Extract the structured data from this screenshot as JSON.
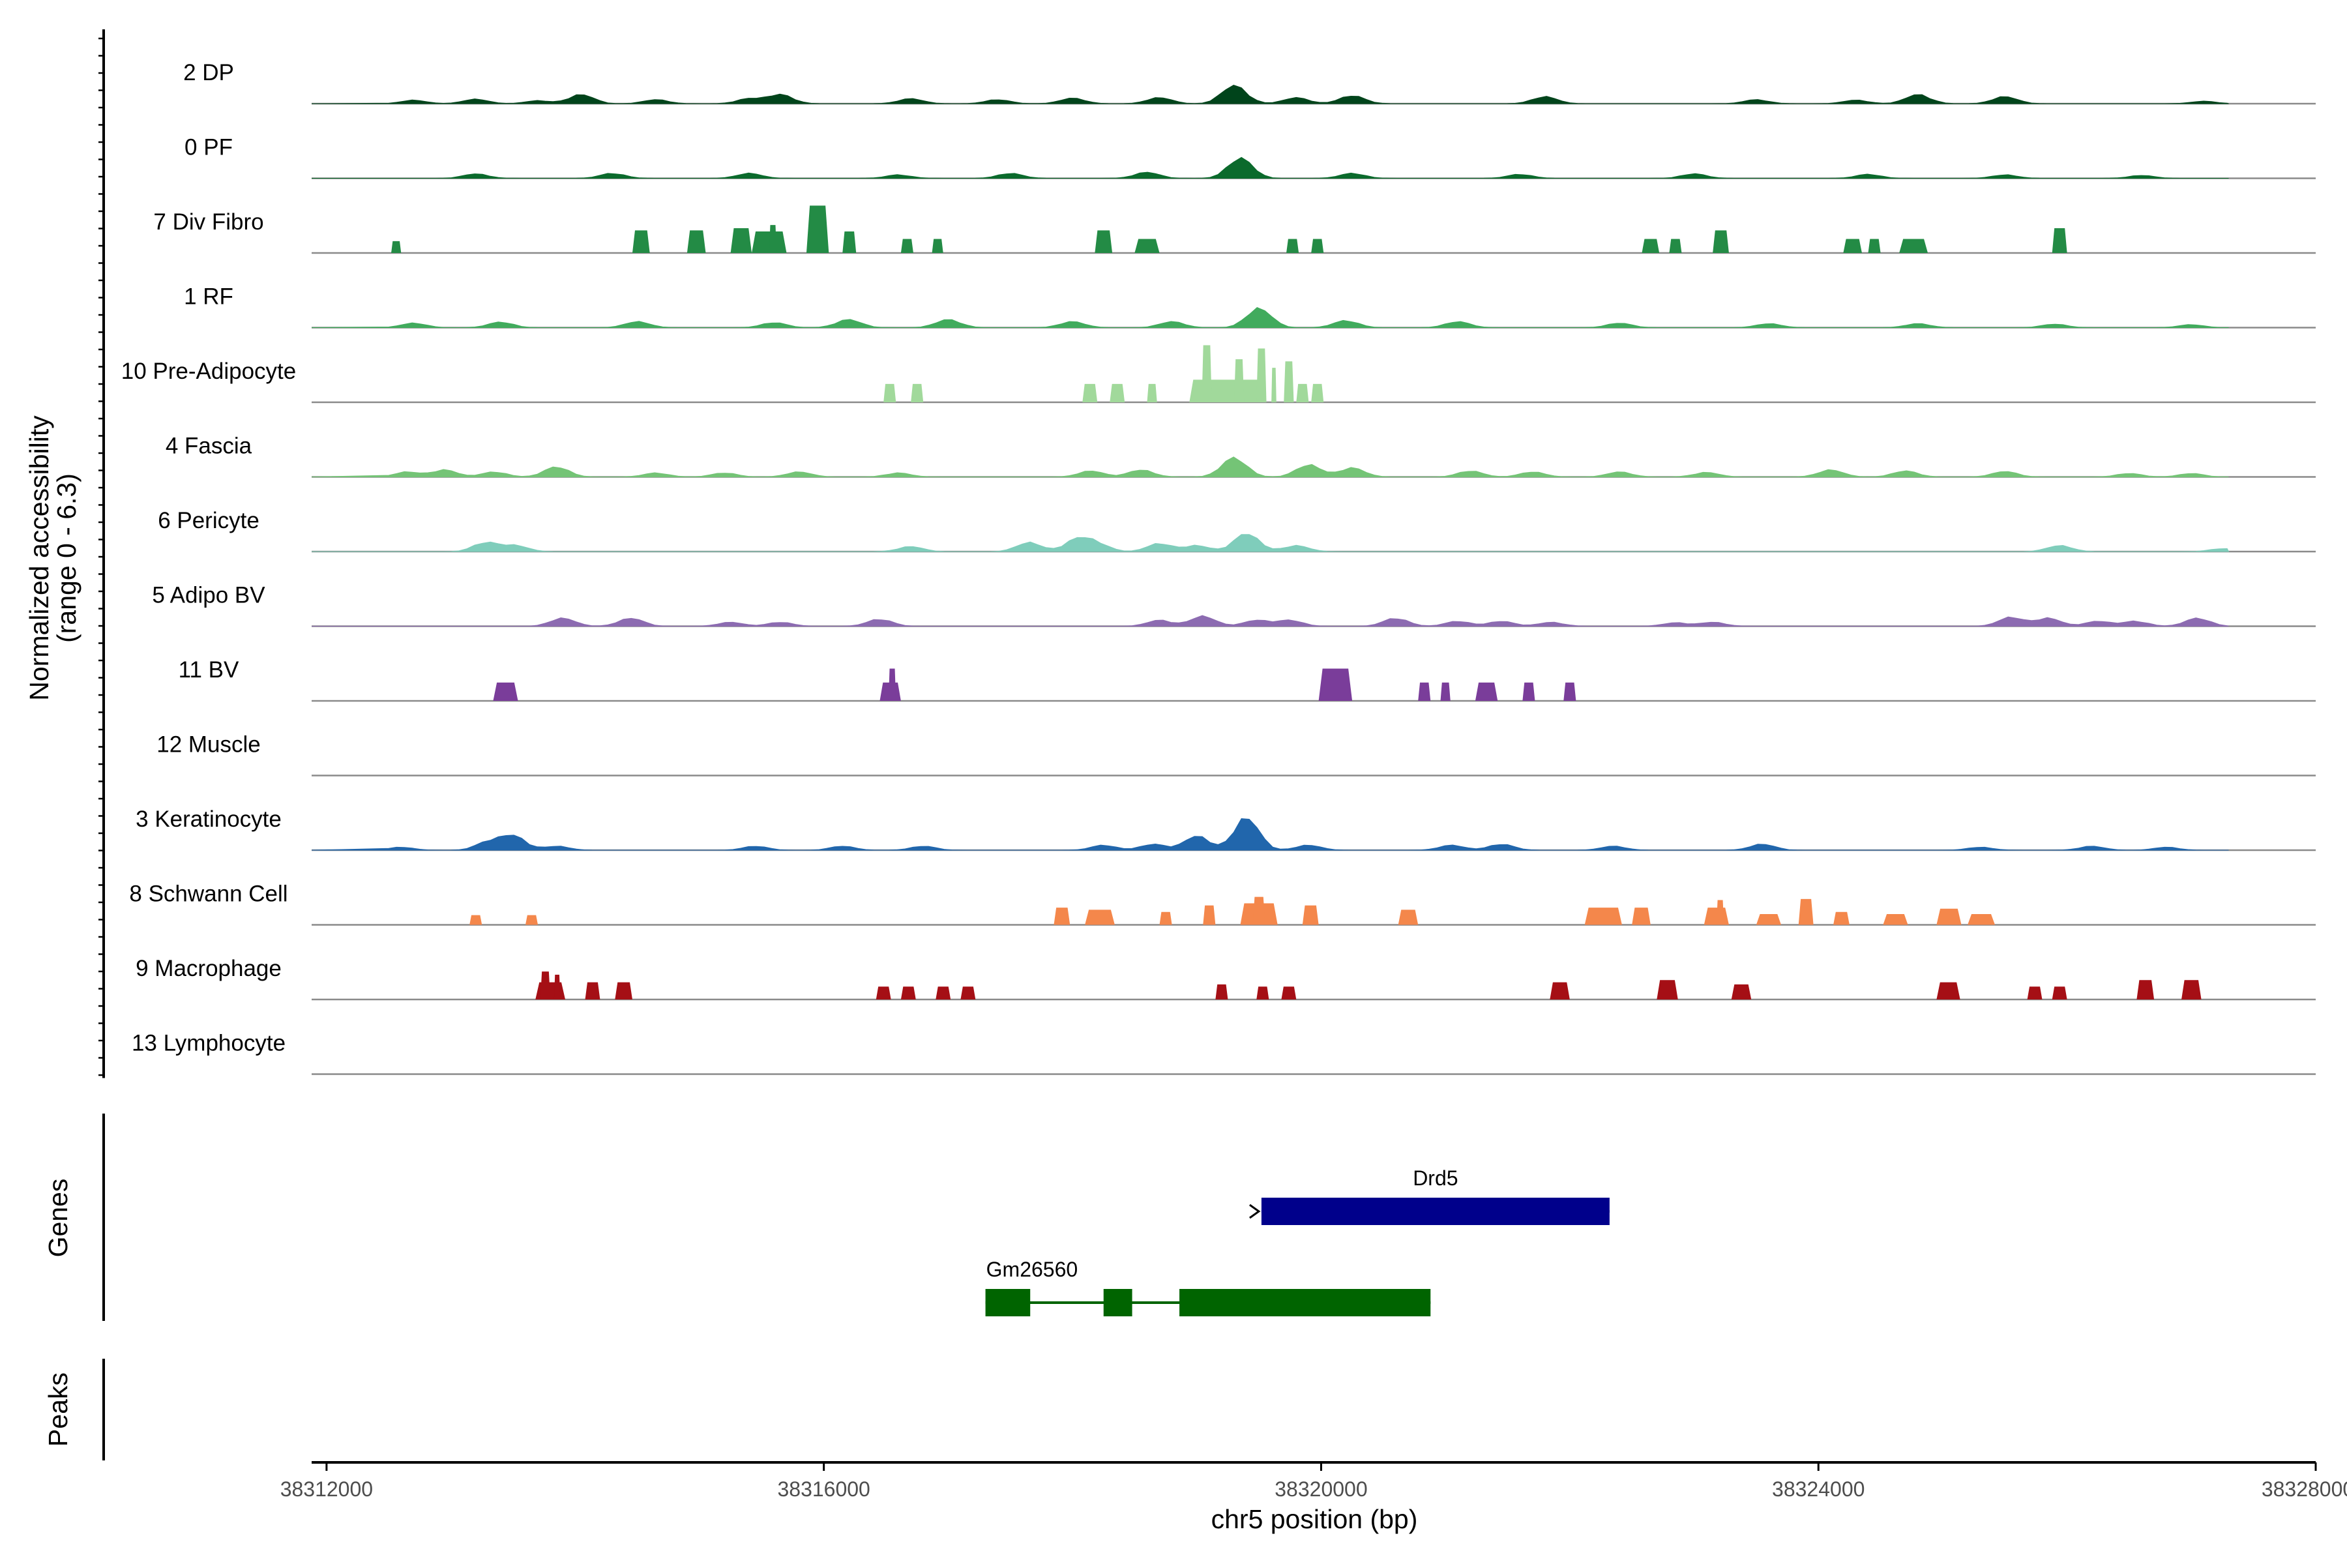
{
  "chart_data": {
    "type": "area",
    "title": "",
    "xlabel": "chr5 position (bp)",
    "ylabel": "Normalized accessibility\n(range 0 - 6.3)",
    "y_range_label": "(range 0 - 6.3)",
    "ylim": [
      0,
      6.3
    ],
    "xlim": [
      38311880,
      38328000
    ],
    "x_ticks": [
      38312000,
      38316000,
      38320000,
      38324000,
      38328000
    ],
    "x_tick_labels": [
      "38312000",
      "38316000",
      "38320000",
      "38324000",
      "38328000"
    ],
    "panel_labels": {
      "genes": "Genes",
      "peaks": "Peaks"
    },
    "series": [
      {
        "name": "2 DP",
        "color": "#00441b",
        "style": "smooth",
        "peaks": [
          [
            38312700,
            0.35
          ],
          [
            38313200,
            0.45
          ],
          [
            38313700,
            0.3
          ],
          [
            38314050,
            0.9
          ],
          [
            38314650,
            0.4
          ],
          [
            38315400,
            0.5
          ],
          [
            38315650,
            0.9
          ],
          [
            38316700,
            0.5
          ],
          [
            38317400,
            0.4
          ],
          [
            38318000,
            0.55
          ],
          [
            38318700,
            0.6
          ],
          [
            38319300,
            1.8
          ],
          [
            38319800,
            0.6
          ],
          [
            38320250,
            0.8
          ],
          [
            38321800,
            0.7
          ],
          [
            38323500,
            0.4
          ],
          [
            38324300,
            0.35
          ],
          [
            38324800,
            0.9
          ],
          [
            38325500,
            0.7
          ],
          [
            38327100,
            0.25
          ]
        ]
      },
      {
        "name": "0 PF",
        "color": "#0b6a2c",
        "style": "smooth",
        "peaks": [
          [
            38313200,
            0.45
          ],
          [
            38314300,
            0.5
          ],
          [
            38315400,
            0.5
          ],
          [
            38316600,
            0.35
          ],
          [
            38317500,
            0.5
          ],
          [
            38318600,
            0.6
          ],
          [
            38319350,
            2.0
          ],
          [
            38320250,
            0.5
          ],
          [
            38321600,
            0.4
          ],
          [
            38323000,
            0.45
          ],
          [
            38324400,
            0.4
          ],
          [
            38325500,
            0.35
          ],
          [
            38326600,
            0.3
          ]
        ]
      },
      {
        "name": "7 Div Fibro",
        "color": "#238b45",
        "style": "block",
        "blocks": [
          [
            38312520,
            38312600,
            1.1
          ],
          [
            38314460,
            38314600,
            2.1
          ],
          [
            38314900,
            38315050,
            2.1
          ],
          [
            38315250,
            38315420,
            2.3
          ],
          [
            38315420,
            38315700,
            2.0
          ],
          [
            38315560,
            38315620,
            2.6
          ],
          [
            38315860,
            38316040,
            4.4
          ],
          [
            38316150,
            38316260,
            2.0
          ],
          [
            38316620,
            38316720,
            1.3
          ],
          [
            38316870,
            38316960,
            1.3
          ],
          [
            38318180,
            38318320,
            2.1
          ],
          [
            38318500,
            38318700,
            1.3
          ],
          [
            38319720,
            38319820,
            1.3
          ],
          [
            38319920,
            38320020,
            1.3
          ],
          [
            38322580,
            38322720,
            1.3
          ],
          [
            38322800,
            38322900,
            1.3
          ],
          [
            38323150,
            38323280,
            2.1
          ],
          [
            38324200,
            38324350,
            1.3
          ],
          [
            38324400,
            38324500,
            1.3
          ],
          [
            38324650,
            38324880,
            1.3
          ],
          [
            38325880,
            38326000,
            2.3
          ]
        ]
      },
      {
        "name": "1 RF",
        "color": "#41ab5d",
        "style": "smooth",
        "peaks": [
          [
            38312700,
            0.45
          ],
          [
            38313400,
            0.55
          ],
          [
            38314500,
            0.6
          ],
          [
            38315600,
            0.5
          ],
          [
            38316200,
            0.8
          ],
          [
            38317000,
            0.8
          ],
          [
            38318000,
            0.6
          ],
          [
            38318800,
            0.6
          ],
          [
            38319500,
            1.9
          ],
          [
            38320200,
            0.7
          ],
          [
            38321100,
            0.6
          ],
          [
            38322400,
            0.45
          ],
          [
            38323600,
            0.4
          ],
          [
            38324800,
            0.4
          ],
          [
            38325900,
            0.35
          ],
          [
            38327000,
            0.3
          ]
        ]
      },
      {
        "name": "10 Pre-Adipocyte",
        "color": "#a1d99b",
        "style": "block",
        "blocks": [
          [
            38316480,
            38316580,
            1.7
          ],
          [
            38316700,
            38316800,
            1.7
          ],
          [
            38318080,
            38318200,
            1.7
          ],
          [
            38318300,
            38318420,
            1.7
          ],
          [
            38318600,
            38318680,
            1.7
          ],
          [
            38318940,
            38319540,
            2.1
          ],
          [
            38319040,
            38319120,
            5.3
          ],
          [
            38319300,
            38319380,
            4.0
          ],
          [
            38319480,
            38319560,
            5.0
          ],
          [
            38319600,
            38319640,
            3.2
          ],
          [
            38319700,
            38319780,
            3.8
          ],
          [
            38319800,
            38319900,
            1.7
          ],
          [
            38319920,
            38320020,
            1.7
          ]
        ]
      },
      {
        "name": "4 Fascia",
        "color": "#74c476",
        "style": "smooth",
        "peaks": [
          [
            38312650,
            0.5
          ],
          [
            38312950,
            0.7
          ],
          [
            38313350,
            0.5
          ],
          [
            38313850,
            1.0
          ],
          [
            38314650,
            0.4
          ],
          [
            38315200,
            0.4
          ],
          [
            38315800,
            0.5
          ],
          [
            38316600,
            0.4
          ],
          [
            38318150,
            0.6
          ],
          [
            38318550,
            0.7
          ],
          [
            38319300,
            1.9
          ],
          [
            38319900,
            1.2
          ],
          [
            38320250,
            0.9
          ],
          [
            38321200,
            0.6
          ],
          [
            38321700,
            0.5
          ],
          [
            38322400,
            0.5
          ],
          [
            38323100,
            0.45
          ],
          [
            38324100,
            0.7
          ],
          [
            38324700,
            0.6
          ],
          [
            38325500,
            0.55
          ],
          [
            38326500,
            0.35
          ],
          [
            38327000,
            0.35
          ]
        ]
      },
      {
        "name": "6 Pericyte",
        "color": "#7fcdbb",
        "style": "smooth",
        "peaks": [
          [
            38313280,
            0.9
          ],
          [
            38313520,
            0.6
          ],
          [
            38316700,
            0.5
          ],
          [
            38317650,
            0.9
          ],
          [
            38318040,
            1.2
          ],
          [
            38318200,
            0.7
          ],
          [
            38318700,
            0.8
          ],
          [
            38319000,
            0.6
          ],
          [
            38319400,
            1.8
          ],
          [
            38319800,
            0.6
          ],
          [
            38325940,
            0.6
          ],
          [
            38327250,
            0.3
          ]
        ]
      },
      {
        "name": "5 Adipo BV",
        "color": "#8c6bb1",
        "style": "smooth",
        "peaks": [
          [
            38313900,
            0.8
          ],
          [
            38314450,
            0.8
          ],
          [
            38315250,
            0.4
          ],
          [
            38315650,
            0.4
          ],
          [
            38316450,
            0.7
          ],
          [
            38318700,
            0.6
          ],
          [
            38319050,
            1.0
          ],
          [
            38319480,
            0.6
          ],
          [
            38319750,
            0.6
          ],
          [
            38320600,
            0.8
          ],
          [
            38321100,
            0.5
          ],
          [
            38321450,
            0.5
          ],
          [
            38321850,
            0.4
          ],
          [
            38322850,
            0.35
          ],
          [
            38323150,
            0.4
          ],
          [
            38325550,
            0.9
          ],
          [
            38325850,
            0.8
          ],
          [
            38326250,
            0.5
          ],
          [
            38326550,
            0.5
          ],
          [
            38327050,
            0.8
          ]
        ]
      },
      {
        "name": "11 BV",
        "color": "#7a3d9a",
        "style": "block",
        "blocks": [
          [
            38313340,
            38313540,
            1.7
          ],
          [
            38316450,
            38316620,
            1.7
          ],
          [
            38316520,
            38316580,
            3.0
          ],
          [
            38319980,
            38320250,
            3.0
          ],
          [
            38320780,
            38320880,
            1.7
          ],
          [
            38320960,
            38321040,
            1.7
          ],
          [
            38321240,
            38321420,
            1.7
          ],
          [
            38321620,
            38321720,
            1.7
          ],
          [
            38321950,
            38322050,
            1.7
          ]
        ]
      },
      {
        "name": "12 Muscle",
        "color": "#6e6e6e",
        "style": "smooth",
        "peaks": []
      },
      {
        "name": "3 Keratinocyte",
        "color": "#2166ac",
        "style": "smooth",
        "peaks": [
          [
            38312600,
            0.3
          ],
          [
            38313300,
            0.8
          ],
          [
            38313500,
            1.4
          ],
          [
            38313850,
            0.4
          ],
          [
            38315450,
            0.4
          ],
          [
            38316150,
            0.4
          ],
          [
            38316800,
            0.4
          ],
          [
            38318250,
            0.5
          ],
          [
            38318650,
            0.6
          ],
          [
            38319000,
            1.4
          ],
          [
            38319400,
            3.2
          ],
          [
            38319900,
            0.5
          ],
          [
            38321050,
            0.5
          ],
          [
            38321450,
            0.6
          ],
          [
            38322350,
            0.4
          ],
          [
            38323550,
            0.6
          ],
          [
            38325300,
            0.3
          ],
          [
            38326200,
            0.4
          ],
          [
            38326800,
            0.3
          ]
        ]
      },
      {
        "name": "8 Schwann Cell",
        "color": "#f4874b",
        "style": "block",
        "blocks": [
          [
            38313150,
            38313250,
            0.9
          ],
          [
            38313600,
            38313700,
            0.9
          ],
          [
            38317850,
            38317980,
            1.6
          ],
          [
            38318100,
            38318340,
            1.4
          ],
          [
            38318700,
            38318800,
            1.2
          ],
          [
            38319050,
            38319150,
            1.8
          ],
          [
            38319350,
            38319650,
            2.0
          ],
          [
            38319450,
            38319550,
            2.6
          ],
          [
            38319850,
            38319980,
            1.8
          ],
          [
            38320620,
            38320780,
            1.4
          ],
          [
            38322120,
            38322420,
            1.6
          ],
          [
            38322500,
            38322650,
            1.6
          ],
          [
            38323080,
            38323280,
            1.6
          ],
          [
            38323180,
            38323240,
            2.3
          ],
          [
            38323500,
            38323700,
            1.0
          ],
          [
            38323840,
            38323960,
            2.4
          ],
          [
            38324120,
            38324250,
            1.2
          ],
          [
            38324520,
            38324720,
            1.0
          ],
          [
            38324950,
            38325150,
            1.5
          ],
          [
            38325200,
            38325420,
            1.0
          ]
        ]
      },
      {
        "name": "9 Macrophage",
        "color": "#a50f15",
        "style": "block",
        "blocks": [
          [
            38313680,
            38313920,
            1.6
          ],
          [
            38313720,
            38313800,
            2.6
          ],
          [
            38313830,
            38313880,
            2.3
          ],
          [
            38314080,
            38314200,
            1.6
          ],
          [
            38314320,
            38314460,
            1.6
          ],
          [
            38316420,
            38316540,
            1.2
          ],
          [
            38316620,
            38316740,
            1.2
          ],
          [
            38316900,
            38317020,
            1.2
          ],
          [
            38317100,
            38317220,
            1.2
          ],
          [
            38319150,
            38319250,
            1.4
          ],
          [
            38319480,
            38319580,
            1.2
          ],
          [
            38319680,
            38319800,
            1.2
          ],
          [
            38321840,
            38322000,
            1.6
          ],
          [
            38322700,
            38322870,
            1.8
          ],
          [
            38323300,
            38323460,
            1.4
          ],
          [
            38324950,
            38325140,
            1.6
          ],
          [
            38325680,
            38325800,
            1.2
          ],
          [
            38325880,
            38326000,
            1.2
          ],
          [
            38326560,
            38326700,
            1.8
          ],
          [
            38326920,
            38327080,
            1.8
          ]
        ]
      },
      {
        "name": "13 Lymphocyte",
        "color": "#6e6e6e",
        "style": "smooth",
        "peaks": []
      }
    ],
    "genes": [
      {
        "name": "Drd5",
        "color": "#00008b",
        "strand": "+",
        "exons": [
          [
            38319520,
            38322320
          ]
        ]
      },
      {
        "name": "Gm26560",
        "color": "#006400",
        "strand": "+",
        "exons": [
          [
            38317300,
            38317660
          ],
          [
            38318250,
            38318480
          ],
          [
            38318860,
            38320880
          ]
        ]
      }
    ],
    "peaks_track": []
  }
}
